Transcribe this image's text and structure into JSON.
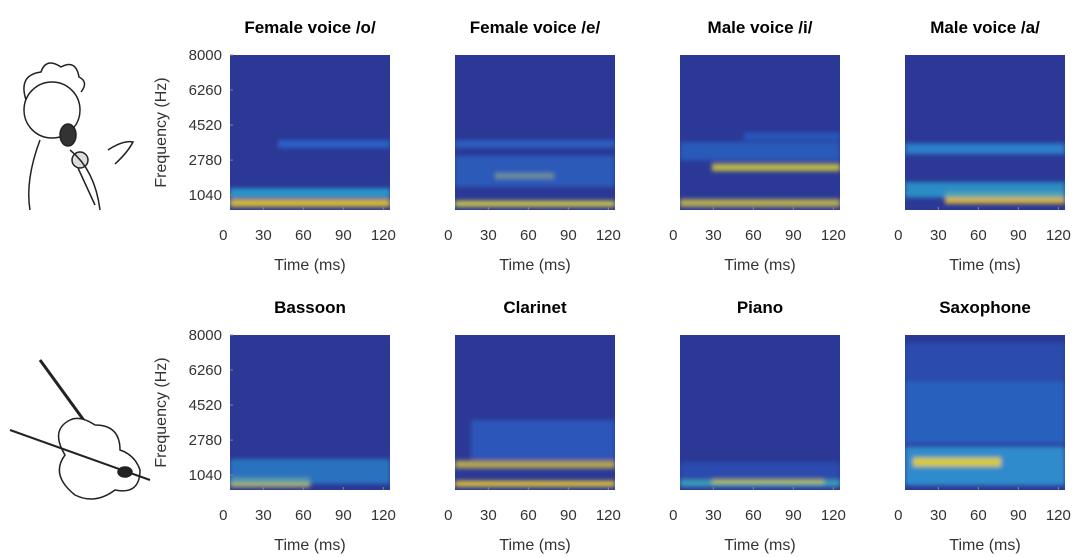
{
  "panels": [
    {
      "title": "Female voice /o/",
      "ylabel": "Frequency (Hz)",
      "ylim": [
        300,
        8000
      ],
      "yticks": [
        1040,
        2780,
        4520,
        6260,
        8000
      ],
      "xlim": [
        5,
        125
      ],
      "xticks": [
        0,
        30,
        60,
        90,
        120
      ],
      "xlabel": "Time (ms)"
    },
    {
      "title": "Female voice /e/",
      "xlim": [
        5,
        125
      ],
      "xticks": [
        0,
        30,
        60,
        90,
        120
      ],
      "xlabel": "Time (ms)"
    },
    {
      "title": "Male voice /i/",
      "xlim": [
        5,
        125
      ],
      "xticks": [
        0,
        30,
        60,
        90,
        120
      ],
      "xlabel": "Time (ms)"
    },
    {
      "title": "Male voice /a/",
      "xlim": [
        5,
        125
      ],
      "xticks": [
        0,
        30,
        60,
        90,
        120
      ],
      "xlabel": "Time (ms)"
    },
    {
      "title": "Bassoon",
      "ylabel": "Frequency (Hz)",
      "ylim": [
        300,
        8000
      ],
      "yticks": [
        1040,
        2780,
        4520,
        6260,
        8000
      ],
      "xlim": [
        5,
        125
      ],
      "xticks": [
        0,
        30,
        60,
        90,
        120
      ],
      "xlabel": "Time (ms)"
    },
    {
      "title": "Clarinet",
      "xlim": [
        5,
        125
      ],
      "xticks": [
        0,
        30,
        60,
        90,
        120
      ],
      "xlabel": "Time (ms)"
    },
    {
      "title": "Piano",
      "xlim": [
        5,
        125
      ],
      "xticks": [
        0,
        30,
        60,
        90,
        120
      ],
      "xlabel": "Time (ms)"
    },
    {
      "title": "Saxophone",
      "xlim": [
        5,
        125
      ],
      "xticks": [
        0,
        30,
        60,
        90,
        120
      ],
      "xlabel": "Time (ms)"
    }
  ]
}
